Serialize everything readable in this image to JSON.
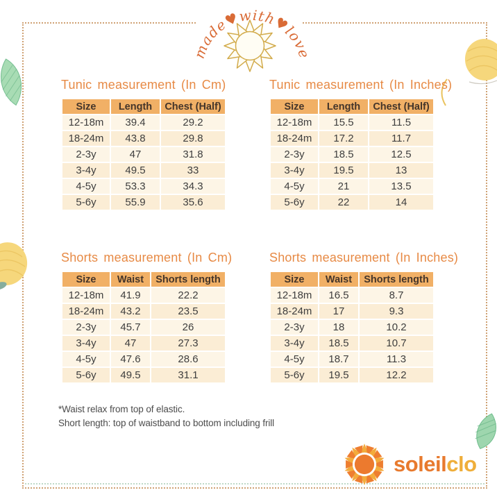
{
  "header": {
    "arc_text": "made♥with♥love"
  },
  "tables": [
    {
      "title": "Tunic measurement (In Cm)",
      "headers": [
        "Size",
        "Length",
        "Chest (Half)"
      ],
      "rows": [
        [
          "12-18m",
          "39.4",
          "29.2"
        ],
        [
          "18-24m",
          "43.8",
          "29.8"
        ],
        [
          "2-3y",
          "47",
          "31.8"
        ],
        [
          "3-4y",
          "49.5",
          "33"
        ],
        [
          "4-5y",
          "53.3",
          "34.3"
        ],
        [
          "5-6y",
          "55.9",
          "35.6"
        ]
      ]
    },
    {
      "title": "Tunic measurement (In Inches)",
      "headers": [
        "Size",
        "Length",
        "Chest (Half)"
      ],
      "rows": [
        [
          "12-18m",
          "15.5",
          "11.5"
        ],
        [
          "18-24m",
          "17.2",
          "11.7"
        ],
        [
          "2-3y",
          "18.5",
          "12.5"
        ],
        [
          "3-4y",
          "19.5",
          "13"
        ],
        [
          "4-5y",
          "21",
          "13.5"
        ],
        [
          "5-6y",
          "22",
          "14"
        ]
      ]
    },
    {
      "title": "Shorts measurement (In Cm)",
      "headers": [
        "Size",
        "Waist",
        "Shorts length"
      ],
      "rows": [
        [
          "12-18m",
          "41.9",
          "22.2"
        ],
        [
          "18-24m",
          "43.2",
          "23.5"
        ],
        [
          "2-3y",
          "45.7",
          "26"
        ],
        [
          "3-4y",
          "47",
          "27.3"
        ],
        [
          "4-5y",
          "47.6",
          "28.6"
        ],
        [
          "5-6y",
          "49.5",
          "31.1"
        ]
      ]
    },
    {
      "title": "Shorts measurement (In Inches)",
      "headers": [
        "Size",
        "Waist",
        "Shorts length"
      ],
      "rows": [
        [
          "12-18m",
          "16.5",
          "8.7"
        ],
        [
          "18-24m",
          "17",
          "9.3"
        ],
        [
          "2-3y",
          "18",
          "10.2"
        ],
        [
          "3-4y",
          "18.5",
          "10.7"
        ],
        [
          "4-5y",
          "18.7",
          "11.3"
        ],
        [
          "5-6y",
          "19.5",
          "12.2"
        ]
      ]
    }
  ],
  "notes": {
    "line1": "*Waist relax from top of elastic.",
    "line2": "Short length: top of waistband to bottom including frill"
  },
  "brand": {
    "name_primary": "soleil",
    "name_secondary": "clo"
  },
  "colors": {
    "title_orange": "#e78a45",
    "header_fill": "#f1b066",
    "row_light": "#fdf5e6",
    "row_dark": "#fbedd5",
    "border_tan": "#cfa173",
    "brand_orange": "#e87a2e",
    "brand_gold": "#efae3a",
    "leaf_green": "#9ed6ae",
    "lemon_yellow": "#f6d77c"
  },
  "icons": [
    "sun-outline-icon",
    "brand-sun-icon",
    "leaf-icon",
    "lemon-icon"
  ]
}
